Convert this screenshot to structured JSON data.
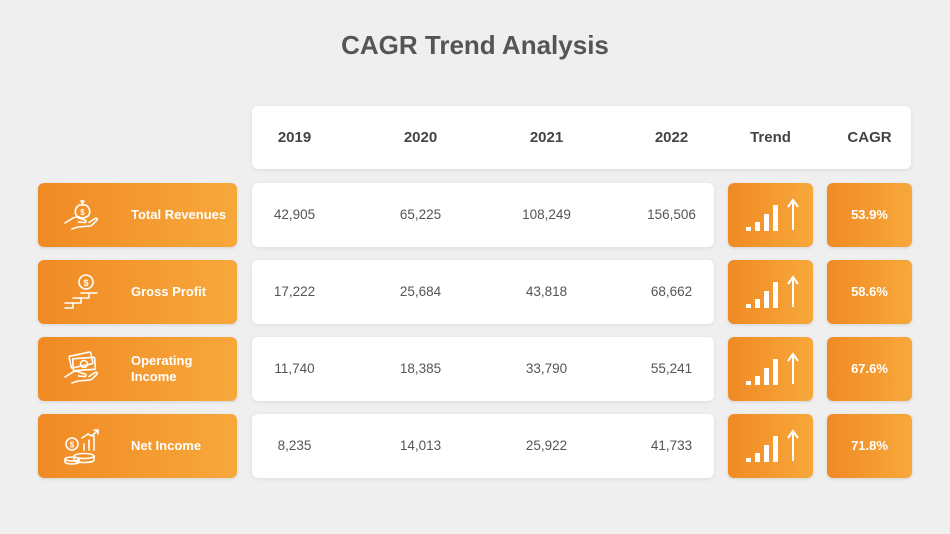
{
  "title": "CAGR Trend Analysis",
  "header": {
    "years": [
      "2019",
      "2020",
      "2021",
      "2022"
    ],
    "trend": "Trend",
    "cagr": "CAGR"
  },
  "rows": [
    {
      "label": "Total Revenues",
      "icon": "money-bag-hand-icon",
      "values": [
        "42,905",
        "65,225",
        "108,249",
        "156,506"
      ],
      "trend_icon": "growth-bars-arrow-up-icon",
      "cagr": "53.9%"
    },
    {
      "label": "Gross Profit",
      "icon": "coin-stairs-icon",
      "values": [
        "17,222",
        "25,684",
        "43,818",
        "68,662"
      ],
      "trend_icon": "growth-bars-arrow-up-icon",
      "cagr": "58.6%"
    },
    {
      "label": "Operating Income",
      "icon": "cash-hand-icon",
      "values": [
        "11,740",
        "18,385",
        "33,790",
        "55,241"
      ],
      "trend_icon": "growth-bars-arrow-up-icon",
      "cagr": "67.6%"
    },
    {
      "label": "Net Income",
      "icon": "coins-chart-icon",
      "values": [
        "8,235",
        "14,013",
        "25,922",
        "41,733"
      ],
      "trend_icon": "growth-bars-arrow-up-icon",
      "cagr": "71.8%"
    }
  ],
  "colors": {
    "accent": "#f39530",
    "background": "#efefef",
    "card": "#ffffff",
    "title_text": "#555555"
  }
}
